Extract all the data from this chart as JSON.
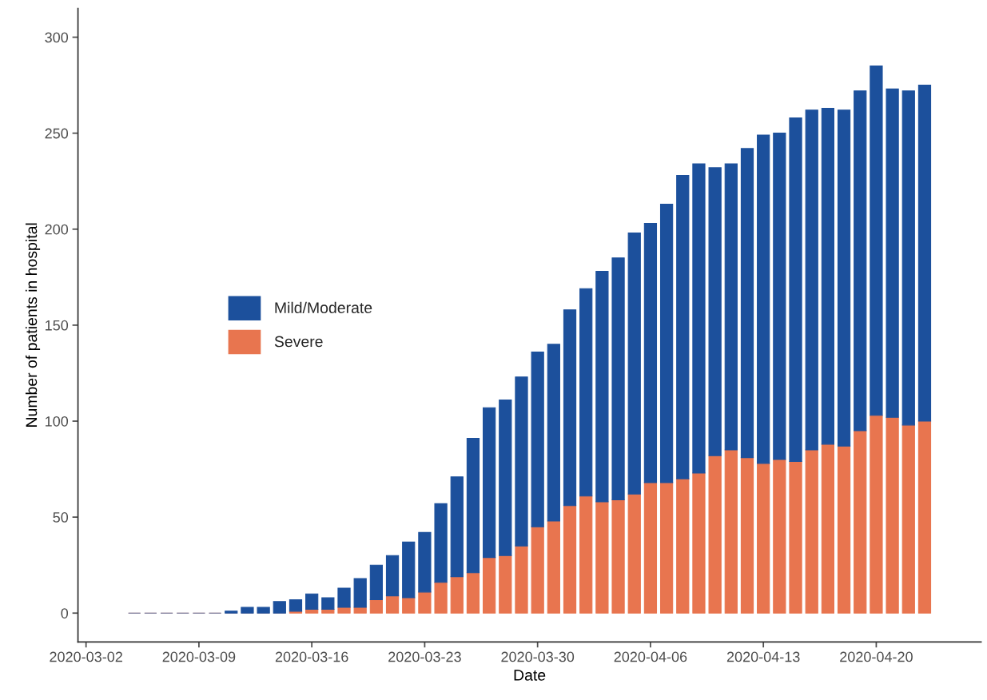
{
  "chart_data": {
    "type": "bar",
    "stacked": true,
    "xlabel": "Date",
    "ylabel": "Number of patients in hospital",
    "x": [
      "2020-03-05",
      "2020-03-06",
      "2020-03-07",
      "2020-03-08",
      "2020-03-09",
      "2020-03-10",
      "2020-03-11",
      "2020-03-12",
      "2020-03-13",
      "2020-03-14",
      "2020-03-15",
      "2020-03-16",
      "2020-03-17",
      "2020-03-18",
      "2020-03-19",
      "2020-03-20",
      "2020-03-21",
      "2020-03-22",
      "2020-03-23",
      "2020-03-24",
      "2020-03-25",
      "2020-03-26",
      "2020-03-27",
      "2020-03-28",
      "2020-03-29",
      "2020-03-30",
      "2020-03-31",
      "2020-04-01",
      "2020-04-02",
      "2020-04-03",
      "2020-04-04",
      "2020-04-05",
      "2020-04-06",
      "2020-04-07",
      "2020-04-08",
      "2020-04-09",
      "2020-04-10",
      "2020-04-11",
      "2020-04-12",
      "2020-04-13",
      "2020-04-14",
      "2020-04-15",
      "2020-04-16",
      "2020-04-17",
      "2020-04-18",
      "2020-04-19",
      "2020-04-20",
      "2020-04-21",
      "2020-04-22",
      "2020-04-23"
    ],
    "series": [
      {
        "name": "Severe",
        "color": "#e8754f",
        "values": [
          0,
          0,
          0,
          0,
          0,
          0,
          0,
          0,
          0,
          0,
          1,
          2,
          2,
          3,
          3,
          7,
          9,
          8,
          11,
          16,
          19,
          21,
          29,
          30,
          35,
          45,
          48,
          56,
          61,
          58,
          59,
          62,
          68,
          68,
          70,
          73,
          82,
          85,
          81,
          78,
          80,
          79,
          85,
          88,
          87,
          95,
          103,
          102,
          98,
          100
        ]
      },
      {
        "name": "Mild/Moderate",
        "color": "#1c509c",
        "values": [
          0,
          0,
          0,
          0,
          0,
          0,
          1,
          3,
          3,
          6,
          6,
          8,
          6,
          10,
          15,
          18,
          21,
          29,
          31,
          41,
          52,
          70,
          78,
          81,
          88,
          91,
          92,
          102,
          108,
          120,
          126,
          136,
          135,
          145,
          158,
          161,
          150,
          149,
          161,
          171,
          170,
          179,
          177,
          175,
          175,
          177,
          182,
          171,
          174,
          175
        ]
      }
    ],
    "xlim": [
      "2020-03-01T12:00",
      "2020-04-26T12:00"
    ],
    "xticks": [
      "2020-03-02",
      "2020-03-09",
      "2020-03-16",
      "2020-03-23",
      "2020-03-30",
      "2020-04-06",
      "2020-04-13",
      "2020-04-20"
    ],
    "ylim": [
      -15,
      315
    ],
    "yticks": [
      0,
      50,
      100,
      150,
      200,
      250,
      300
    ],
    "grid": false,
    "legend": "center left"
  }
}
